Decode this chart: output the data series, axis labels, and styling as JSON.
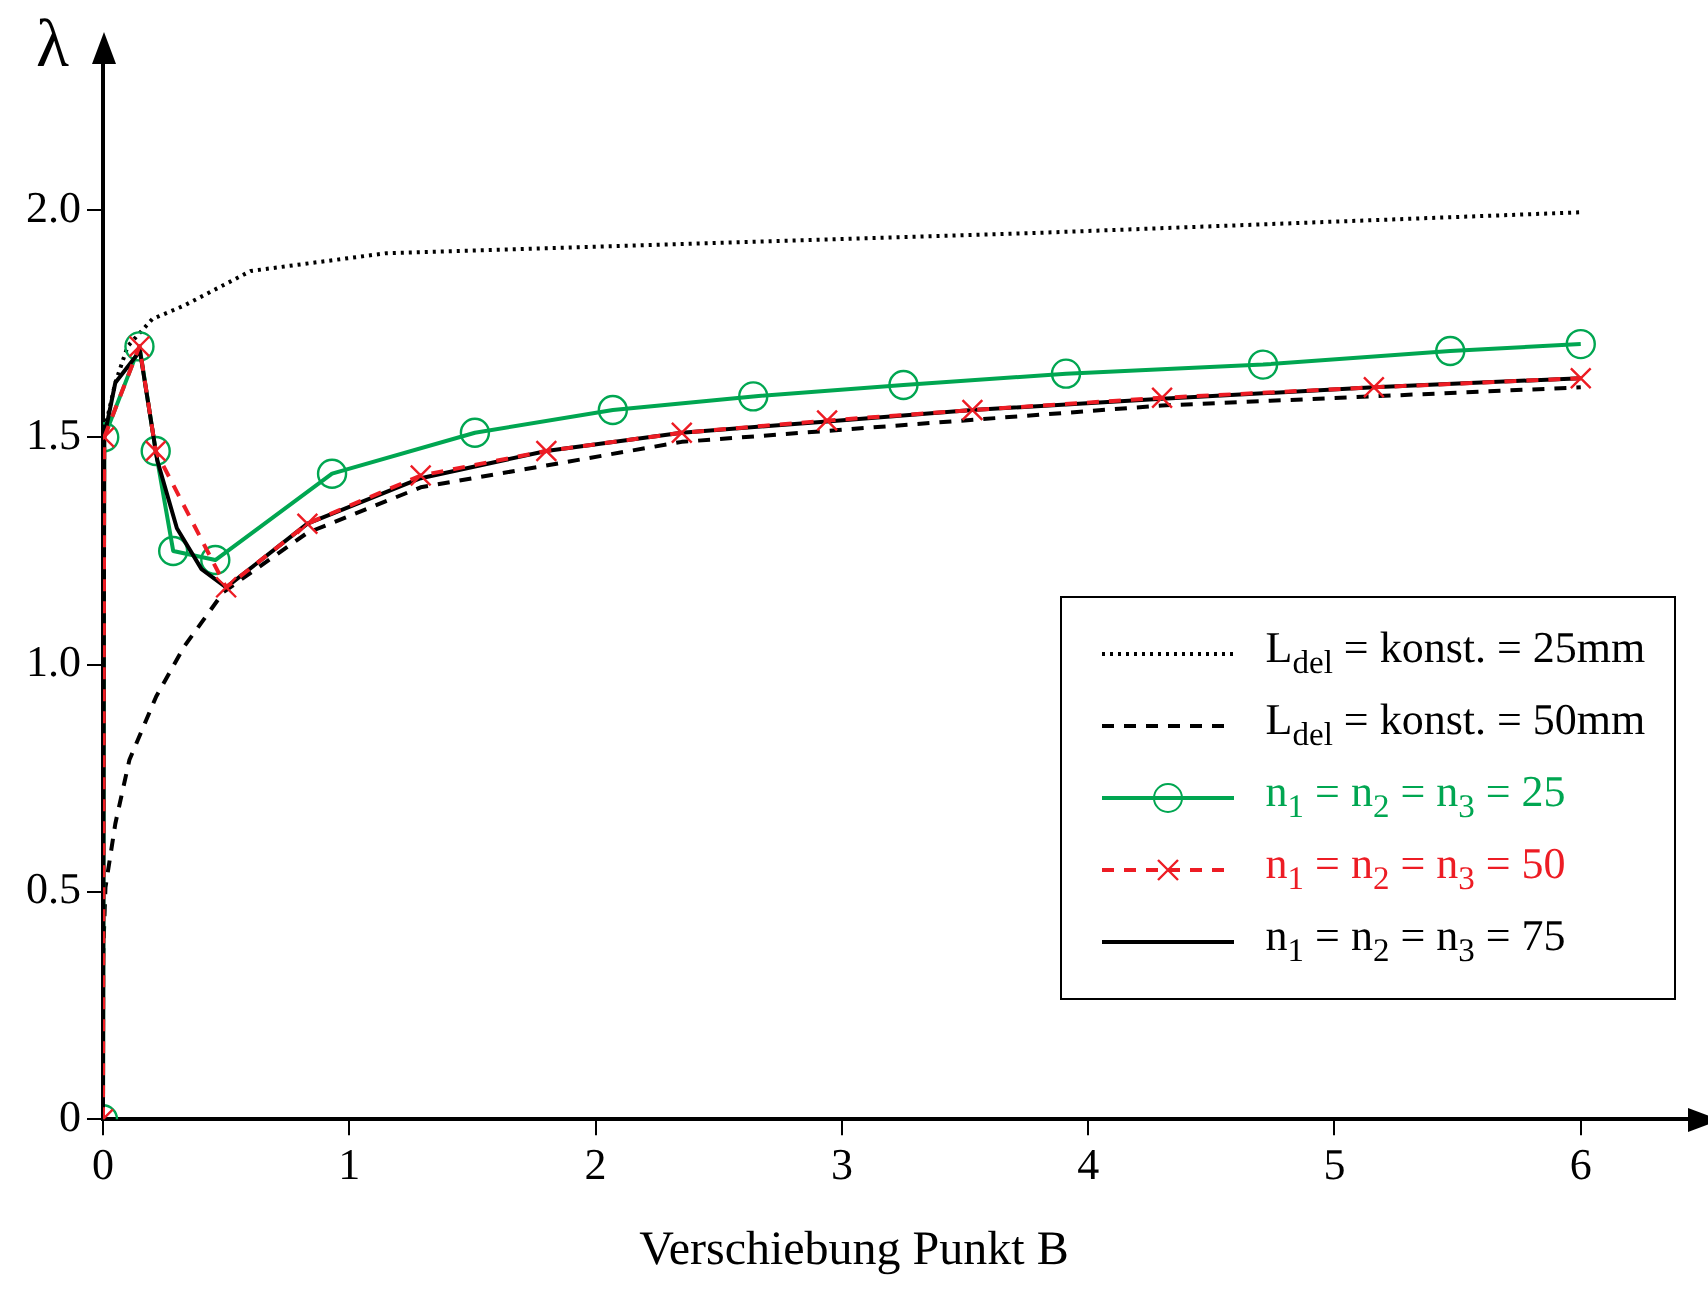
{
  "chart_data": {
    "type": "line",
    "xlabel": "Verschiebung Punkt B",
    "ylabel": "λ",
    "xlim": [
      0,
      6.45
    ],
    "ylim": [
      0,
      2.33
    ],
    "xticks": [
      0,
      1,
      2,
      3,
      4,
      5,
      6
    ],
    "yticks": [
      0,
      {
        "value": 0.5,
        "label": "0.5"
      },
      {
        "value": 1,
        "label": "1.0"
      },
      {
        "value": 1.5,
        "label": "1.5"
      },
      {
        "value": 2,
        "label": "2.0"
      }
    ],
    "grid": false,
    "legend": "bottom right",
    "series": [
      {
        "name": "L$_{del}$ = konst. = 25mm",
        "color": "#000000",
        "line_style": "dotted",
        "marker": "none",
        "x": [
          0,
          0.05,
          0.1,
          0.2,
          0.33,
          0.6,
          1.15,
          1.75,
          3.81,
          6
        ],
        "values": [
          1.5,
          1.62,
          1.7,
          1.76,
          1.79,
          1.866,
          1.905,
          1.915,
          1.95,
          1.995
        ]
      },
      {
        "name": "L$_{del}$ = konst. = 50mm",
        "color": "#000000",
        "line_style": "dashed",
        "marker": "none",
        "x": [
          0,
          0.01,
          0.05,
          0.107,
          0.216,
          0.33,
          0.49,
          0.83,
          1.29,
          2.35,
          4.3,
          6
        ],
        "values": [
          0.35,
          0.51,
          0.65,
          0.79,
          0.93,
          1.04,
          1.16,
          1.29,
          1.39,
          1.49,
          1.57,
          1.61
        ]
      },
      {
        "name": "n$_{1}$ = n$_{2}$ = n$_{3}$ = 25",
        "color": "#00a651",
        "line_style": "solid",
        "marker": "circle",
        "x": [
          0,
          0.005,
          0.148,
          0.214,
          0.285,
          0.456,
          0.93,
          1.51,
          2.07,
          2.64,
          3.25,
          3.91,
          4.71,
          5.47,
          6
        ],
        "values": [
          0,
          1.5,
          1.7,
          1.47,
          1.25,
          1.23,
          1.42,
          1.51,
          1.56,
          1.59,
          1.615,
          1.64,
          1.66,
          1.69,
          1.705
        ]
      },
      {
        "name": "n$_{1}$ = n$_{2}$ = n$_{3}$ = 50",
        "color": "#ed1c24",
        "line_style": "dashed",
        "marker": "cross",
        "x": [
          0,
          0.005,
          0.148,
          0.214,
          0.5,
          0.83,
          1.29,
          1.8,
          2.35,
          2.94,
          3.53,
          4.3,
          5.16,
          6
        ],
        "values": [
          0,
          1.5,
          1.7,
          1.47,
          1.17,
          1.31,
          1.416,
          1.47,
          1.51,
          1.537,
          1.56,
          1.587,
          1.61,
          1.63
        ]
      },
      {
        "name": "n$_{1}$ = n$_{2}$ = n$_{3}$ = 75",
        "color": "#000000",
        "line_style": "solid",
        "marker": "none",
        "x": [
          0,
          0.005,
          0.05,
          0.15,
          0.22,
          0.3,
          0.4,
          0.5,
          0.83,
          1.29,
          1.8,
          2.35,
          2.94,
          3.53,
          4.3,
          5.16,
          6
        ],
        "values": [
          0,
          1.5,
          1.62,
          1.69,
          1.45,
          1.3,
          1.21,
          1.17,
          1.31,
          1.41,
          1.47,
          1.51,
          1.535,
          1.56,
          1.585,
          1.61,
          1.63
        ]
      }
    ]
  }
}
